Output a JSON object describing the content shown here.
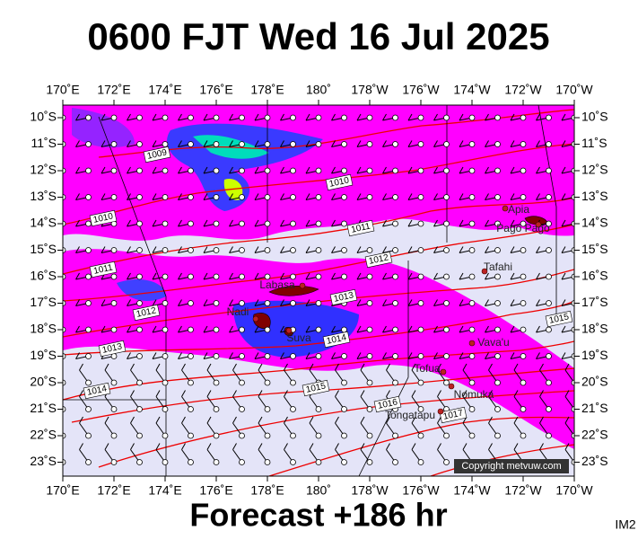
{
  "header": {
    "title": "0600 FJT Wed 16 Jul 2025"
  },
  "footer": {
    "forecast": "Forecast +186 hr",
    "code": "IM2"
  },
  "map": {
    "lon_labels": [
      "170˚E",
      "172˚E",
      "174˚E",
      "176˚E",
      "178˚E",
      "180˚",
      "178˚W",
      "176˚W",
      "174˚W",
      "172˚W",
      "170˚W"
    ],
    "lat_labels": [
      "10˚S",
      "11˚S",
      "12˚S",
      "13˚S",
      "14˚S",
      "15˚S",
      "16˚S",
      "17˚S",
      "18˚S",
      "19˚S",
      "20˚S",
      "21˚S",
      "22˚S",
      "23˚S"
    ],
    "places": [
      "Apia",
      "Pago Pago",
      "Tafahi",
      "Labasa",
      "Nadi",
      "Suva",
      "Vava'u",
      "Tofua",
      "Nomuka",
      "Tongatapu"
    ],
    "isobar_labels": [
      "1009",
      "1010",
      "1010",
      "1011",
      "1011",
      "1012",
      "1012",
      "1013",
      "1013",
      "1014",
      "1014",
      "1015",
      "1015",
      "1016",
      "1017"
    ],
    "copyright": "Copyright metvuw.com"
  }
}
